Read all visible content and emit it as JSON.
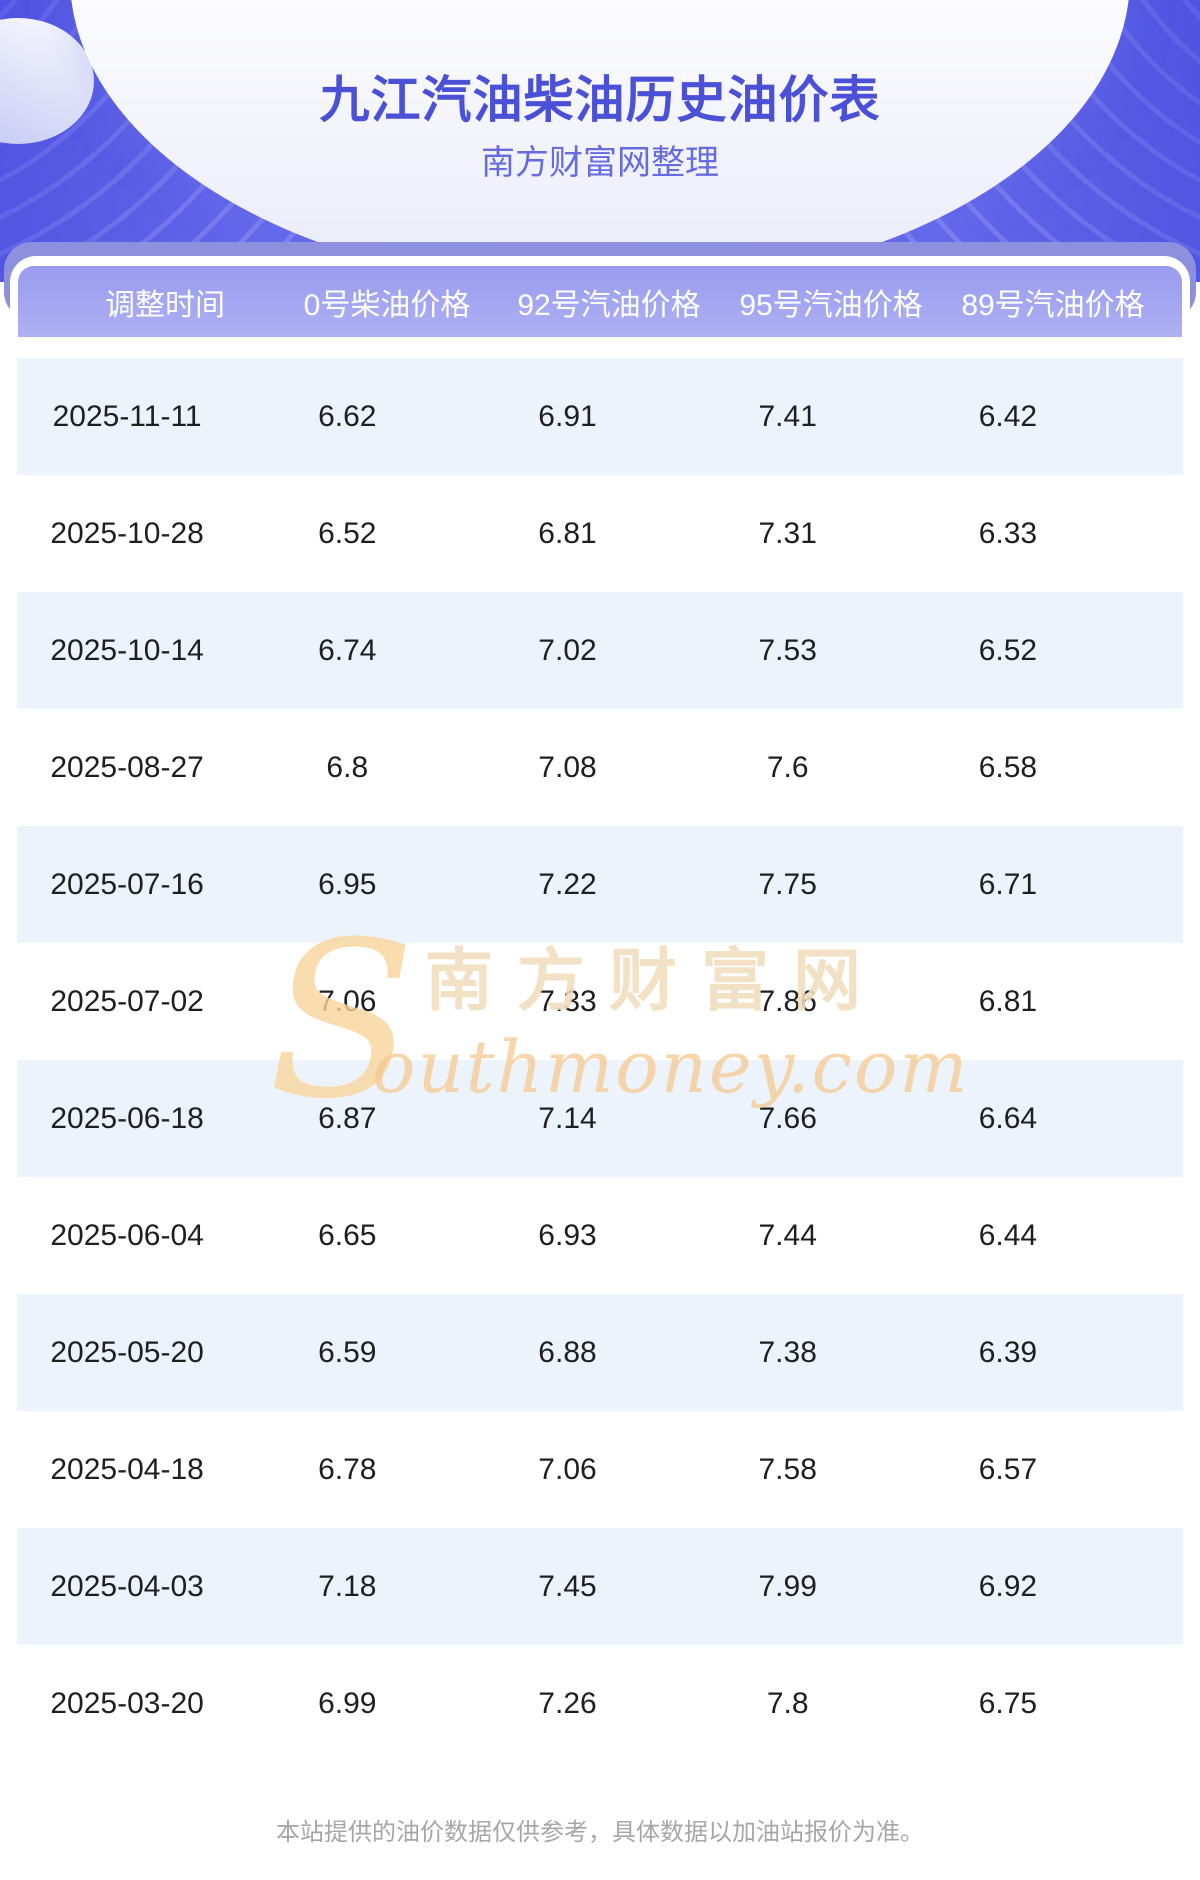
{
  "header": {
    "title": "九江汽油柴油历史油价表",
    "subtitle": "南方财富网整理"
  },
  "table": {
    "columns": [
      "调整时间",
      "0号柴油价格",
      "92号汽油价格",
      "95号汽油价格",
      "89号汽油价格"
    ],
    "rows": [
      [
        "2025-11-11",
        "6.62",
        "6.91",
        "7.41",
        "6.42"
      ],
      [
        "2025-10-28",
        "6.52",
        "6.81",
        "7.31",
        "6.33"
      ],
      [
        "2025-10-14",
        "6.74",
        "7.02",
        "7.53",
        "6.52"
      ],
      [
        "2025-08-27",
        "6.8",
        "7.08",
        "7.6",
        "6.58"
      ],
      [
        "2025-07-16",
        "6.95",
        "7.22",
        "7.75",
        "6.71"
      ],
      [
        "2025-07-02",
        "7.06",
        "7.33",
        "7.86",
        "6.81"
      ],
      [
        "2025-06-18",
        "6.87",
        "7.14",
        "7.66",
        "6.64"
      ],
      [
        "2025-06-04",
        "6.65",
        "6.93",
        "7.44",
        "6.44"
      ],
      [
        "2025-05-20",
        "6.59",
        "6.88",
        "7.38",
        "6.39"
      ],
      [
        "2025-04-18",
        "6.78",
        "7.06",
        "7.58",
        "6.57"
      ],
      [
        "2025-04-03",
        "7.18",
        "7.45",
        "7.99",
        "6.92"
      ],
      [
        "2025-03-20",
        "6.99",
        "7.26",
        "7.8",
        "6.75"
      ]
    ]
  },
  "watermark": {
    "s_glyph": "S",
    "site_name": "南方财富网",
    "domain_text": "outhmoney.com"
  },
  "footer": {
    "disclaimer": "本站提供的油价数据仅供参考，具体数据以加油站报价为准。"
  },
  "colors": {
    "accent_title": "#4b51d7",
    "hero_stripe_base": "#6266e9",
    "table_outer_band": "#8d90de",
    "table_header_band": "#9b9ef0",
    "row_alt_background": "#edf3fb",
    "watermark_tan": "#f1ddbd",
    "footer_gray": "#a6a6a6"
  }
}
